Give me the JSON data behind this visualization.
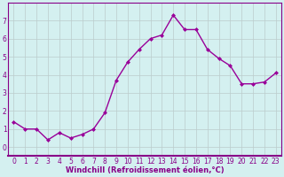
{
  "x": [
    0,
    1,
    2,
    3,
    4,
    5,
    6,
    7,
    8,
    9,
    10,
    11,
    12,
    13,
    14,
    15,
    16,
    17,
    18,
    19,
    20,
    21,
    22,
    23
  ],
  "y": [
    1.4,
    1.0,
    1.0,
    0.4,
    0.8,
    0.5,
    0.7,
    1.0,
    1.9,
    3.7,
    4.7,
    5.4,
    6.0,
    6.2,
    7.3,
    6.5,
    6.5,
    5.4,
    4.9,
    4.5,
    3.5,
    3.5,
    3.6,
    4.1
  ],
  "line_color": "#990099",
  "marker": "D",
  "marker_size": 2.0,
  "line_width": 1.0,
  "xlabel": "Windchill (Refroidissement éolien,°C)",
  "ylim": [
    -0.5,
    8.0
  ],
  "xlim": [
    -0.5,
    23.5
  ],
  "yticks": [
    0,
    1,
    2,
    3,
    4,
    5,
    6,
    7
  ],
  "xticks": [
    0,
    1,
    2,
    3,
    4,
    5,
    6,
    7,
    8,
    9,
    10,
    11,
    12,
    13,
    14,
    15,
    16,
    17,
    18,
    19,
    20,
    21,
    22,
    23
  ],
  "background_color": "#d4f0f0",
  "grid_color": "#bbcccc",
  "tick_label_color": "#880088",
  "xlabel_color": "#880088",
  "border_color": "#880088",
  "tick_fontsize": 5.5,
  "xlabel_fontsize": 6.0
}
